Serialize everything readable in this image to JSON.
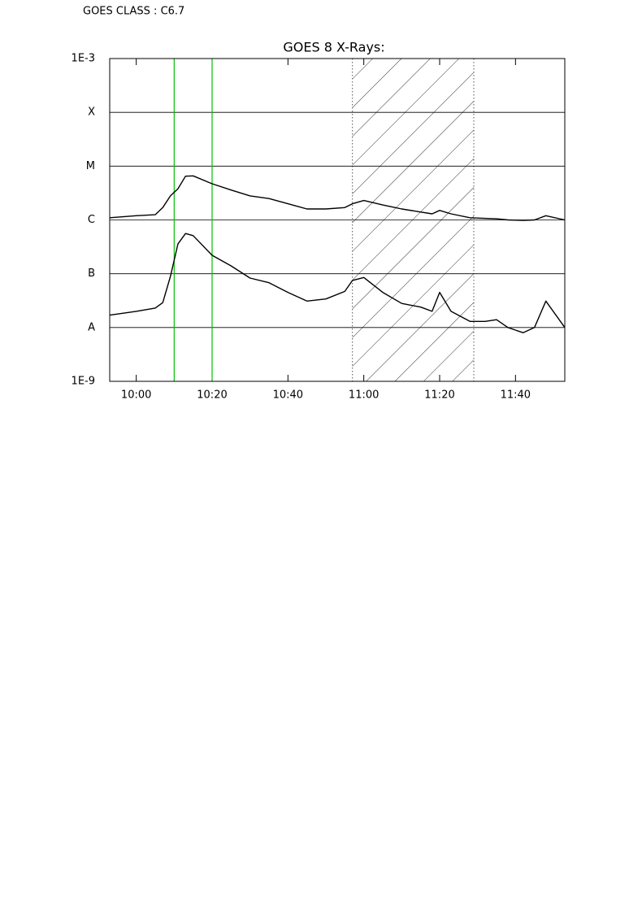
{
  "chart_data": {
    "type": "line",
    "annotation": "GOES CLASS : C6.7",
    "title": "GOES 8 X-Rays:",
    "log_y": true,
    "grid": true,
    "x": [
      "09:53",
      "10:00",
      "10:05",
      "10:07",
      "10:09",
      "10:11",
      "10:13",
      "10:15",
      "10:20",
      "10:25",
      "10:30",
      "10:35",
      "10:40",
      "10:45",
      "10:50",
      "10:55",
      "10:57",
      "11:00",
      "11:05",
      "11:10",
      "11:15",
      "11:18",
      "11:20",
      "11:23",
      "11:28",
      "11:32",
      "11:35",
      "11:38",
      "11:42",
      "11:45",
      "11:48",
      "11:53"
    ],
    "series": [
      {
        "color": "#000000",
        "values": [
          1.1e-06,
          1.2e-06,
          1.25e-06,
          1.7e-06,
          2.8e-06,
          3.8e-06,
          6.5e-06,
          6.6e-06,
          4.7e-06,
          3.6e-06,
          2.8e-06,
          2.5e-06,
          2e-06,
          1.6e-06,
          1.6e-06,
          1.7e-06,
          2e-06,
          2.3e-06,
          1.9e-06,
          1.6e-06,
          1.4e-06,
          1.3e-06,
          1.5e-06,
          1.3e-06,
          1.1e-06,
          1.07e-06,
          1.05e-06,
          1e-06,
          9.8e-07,
          1e-06,
          1.2e-06,
          1e-06
        ]
      },
      {
        "color": "#000000",
        "values": [
          1.7e-08,
          2e-08,
          2.3e-08,
          2.9e-08,
          8.9e-08,
          3.6e-07,
          5.6e-07,
          5.1e-07,
          2.2e-07,
          1.4e-07,
          8.3e-08,
          6.8e-08,
          4.5e-08,
          3.1e-08,
          3.4e-08,
          4.7e-08,
          7.5e-08,
          8.5e-08,
          4.5e-08,
          2.8e-08,
          2.4e-08,
          2e-08,
          4.5e-08,
          2e-08,
          1.3e-08,
          1.3e-08,
          1.4e-08,
          1e-08,
          8e-09,
          1e-08,
          3.1e-08,
          1e-08
        ]
      }
    ],
    "xlim": [
      "09:53",
      "11:53"
    ],
    "xticks": [
      "10:00",
      "10:20",
      "10:40",
      "11:00",
      "11:20",
      "11:40"
    ],
    "ylim": [
      1e-09,
      0.001
    ],
    "yticks": [
      {
        "value": 1e-09,
        "label": "1E-9"
      },
      {
        "value": 1e-08,
        "label": "A"
      },
      {
        "value": 1e-07,
        "label": "B"
      },
      {
        "value": 1e-06,
        "label": "C"
      },
      {
        "value": 1e-05,
        "label": "M"
      },
      {
        "value": 0.0001,
        "label": "X"
      },
      {
        "value": 0.001,
        "label": "1E-3"
      }
    ],
    "markers": [
      {
        "x": "10:10",
        "color": "#00c000"
      },
      {
        "x": "10:20",
        "color": "#00c000"
      }
    ],
    "shaded": [
      "10:57",
      "11:29"
    ]
  }
}
